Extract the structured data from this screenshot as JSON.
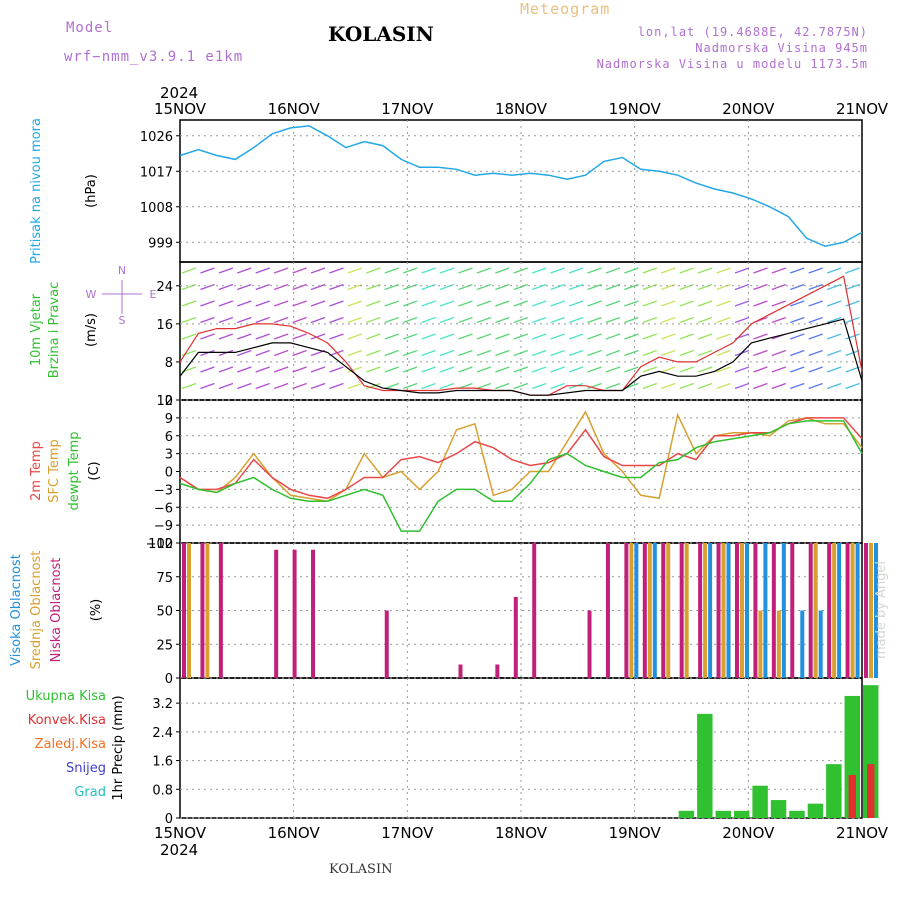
{
  "header": {
    "model_label": "Model",
    "model_name": "wrf−nmm_v3.9.1  e1km",
    "station": "KOLASIN",
    "meteogram_label": "Meteogram",
    "lonlat": "lon,lat (19.4688E, 42.7875N)",
    "elevation": "Nadmorska Visina 945m",
    "model_elevation": "Nadmorska Visina u modelu 1173.5m",
    "credit": "made by Angel",
    "footer_station": "KOLASIN"
  },
  "colors": {
    "pressure": "#22a8e6",
    "wind_speed": "#000000",
    "wind_gust": "#e03030",
    "temp2m": "#e84848",
    "sfc_temp": "#d8a030",
    "dewpoint": "#30c030",
    "high_cloud": "#2090e0",
    "mid_cloud": "#d8a030",
    "low_cloud": "#c0207a",
    "total_precip": "#30c030",
    "conv_precip": "#e03030",
    "frozen_precip": "#f07020",
    "snow": "#4040d0",
    "hail": "#20c0c0",
    "model_label": "#b070d0",
    "meteogram_label": "#e8c080",
    "credit": "#d0d8d0"
  },
  "chart_data": [
    {
      "type": "line",
      "name": "pressure",
      "title": "",
      "ylabel": "Pritisak na nivou mora",
      "yunit": "(hPa)",
      "x_start": "2024-11-15T00",
      "x_step_hours": 6,
      "x_ticks": [
        "15NOV",
        "16NOV",
        "17NOV",
        "18NOV",
        "19NOV",
        "20NOV",
        "21NOV"
      ],
      "year_label": "2024",
      "ylim": [
        994,
        1030
      ],
      "yticks": [
        999,
        1008,
        1017,
        1026
      ],
      "series": [
        {
          "values": [
            1021,
            1022.5,
            1021,
            1020,
            1023,
            1026.5,
            1028,
            1028.5,
            1026,
            1023,
            1024.5,
            1023.5,
            1020,
            1018,
            1018,
            1017.5,
            1016,
            1016.5,
            1016,
            1016.5,
            1016,
            1015,
            1016,
            1019.5,
            1020.5,
            1017.5,
            1017,
            1016,
            1014,
            1012.5,
            1011.5,
            1010,
            1008,
            1005.5,
            1000,
            998,
            999,
            1001.5
          ]
        }
      ]
    },
    {
      "type": "line",
      "name": "wind",
      "ylabel": "10m Vjetar Brzina i Pravac",
      "yunit": "(m/s)",
      "compass": [
        "N",
        "E",
        "S",
        "W"
      ],
      "ylim": [
        0,
        29
      ],
      "yticks": [
        0,
        8,
        16,
        24
      ],
      "series": [
        {
          "name": "speed",
          "values": [
            5,
            10,
            10,
            10,
            11,
            12,
            12,
            11,
            10,
            7,
            4,
            2.5,
            2,
            1.5,
            1.5,
            2,
            2,
            2,
            2,
            1,
            1,
            1.5,
            2,
            2,
            2,
            5,
            6,
            5,
            5,
            6,
            8,
            12,
            13,
            14,
            15,
            16,
            17,
            4
          ]
        },
        {
          "name": "gust",
          "values": [
            8,
            14,
            15,
            15,
            16,
            16,
            15.5,
            14,
            12,
            8,
            3,
            2,
            2,
            2,
            2,
            2.5,
            2.5,
            2,
            2,
            1,
            1,
            3,
            3,
            2,
            2,
            7,
            9,
            8,
            8,
            10,
            12,
            16,
            18,
            20,
            22,
            24,
            26,
            6
          ]
        }
      ]
    },
    {
      "type": "line",
      "name": "temperature",
      "ylabel": "2m Temp / SFC Temp / dewpt Temp",
      "yunit": "(C)",
      "ylim": [
        -12,
        12
      ],
      "yticks": [
        -12,
        -9,
        -6,
        -3,
        0,
        3,
        6,
        9,
        12
      ],
      "series": [
        {
          "name": "2m Temp",
          "values": [
            -1,
            -3,
            -3,
            -2,
            2,
            -1,
            -3,
            -4,
            -4.5,
            -3,
            -1,
            -1,
            2,
            2.5,
            1.5,
            3,
            5,
            4,
            2,
            1,
            1.5,
            3,
            7,
            2.5,
            1,
            1,
            1,
            3,
            2,
            6,
            6,
            6.5,
            6.5,
            8,
            9,
            9,
            9,
            5.5
          ]
        },
        {
          "name": "SFC Temp",
          "values": [
            -1,
            -3,
            -3.5,
            -1,
            3,
            -1,
            -4,
            -4.5,
            -5,
            -3,
            3,
            -1,
            0,
            -3,
            0,
            7,
            8,
            -4,
            -3,
            0,
            0,
            5,
            10,
            3,
            0,
            -4,
            -4.5,
            9.5,
            3,
            6,
            6.5,
            6.5,
            6,
            8.5,
            9,
            8,
            8,
            4
          ]
        },
        {
          "name": "dewpt Temp",
          "values": [
            -2,
            -3,
            -3.5,
            -2,
            -1,
            -3,
            -4.5,
            -5,
            -5,
            -4,
            -3,
            -4,
            -10,
            -10,
            -5,
            -3,
            -3,
            -5,
            -5,
            -2,
            2,
            3,
            1,
            0,
            -1,
            -1,
            1.5,
            2,
            4,
            5,
            5.5,
            6,
            6.5,
            8,
            8.5,
            8.5,
            8.5,
            3
          ]
        }
      ]
    },
    {
      "type": "bar",
      "name": "clouds",
      "ylabel": "Visoka Oblacnost / Srednja Oblacnost / Niska Oblacnost",
      "yunit": "(%)",
      "ylim": [
        0,
        100
      ],
      "yticks": [
        0,
        25,
        50,
        75,
        100
      ],
      "series": [
        {
          "name": "Niska Oblacnost",
          "values": [
            100,
            100,
            100,
            0,
            0,
            95,
            95,
            95,
            0,
            0,
            0,
            50,
            0,
            0,
            0,
            10,
            0,
            10,
            60,
            100,
            0,
            0,
            50,
            100,
            100,
            100,
            100,
            100,
            100,
            100,
            100,
            100,
            100,
            100,
            100,
            100,
            100,
            100
          ]
        },
        {
          "name": "Srednja Oblacnost",
          "values": [
            100,
            100,
            0,
            0,
            0,
            0,
            0,
            0,
            0,
            0,
            0,
            0,
            0,
            0,
            0,
            0,
            0,
            0,
            0,
            0,
            0,
            0,
            0,
            0,
            100,
            100,
            100,
            100,
            100,
            100,
            100,
            50,
            50,
            0,
            100,
            100,
            100,
            100
          ]
        },
        {
          "name": "Visoka Oblacnost",
          "values": [
            0,
            0,
            0,
            0,
            0,
            0,
            0,
            0,
            0,
            0,
            0,
            0,
            0,
            0,
            0,
            0,
            0,
            0,
            0,
            0,
            0,
            0,
            0,
            0,
            100,
            100,
            0,
            0,
            100,
            100,
            100,
            100,
            100,
            50,
            50,
            100,
            100,
            100
          ]
        }
      ]
    },
    {
      "type": "bar",
      "name": "precipitation",
      "ylabel": "1hr Precip (mm)",
      "legend": [
        "Ukupna Kisa",
        "Konvek.Kisa",
        "Zaledj.Kisa",
        "Snijeg",
        "Grad"
      ],
      "ylim": [
        0,
        3.9
      ],
      "yticks": [
        0,
        0.8,
        1.6,
        2.4,
        3.2
      ],
      "series": [
        {
          "name": "Ukupna Kisa",
          "values": [
            0,
            0,
            0,
            0,
            0,
            0,
            0,
            0,
            0,
            0,
            0,
            0,
            0,
            0,
            0,
            0,
            0,
            0,
            0,
            0,
            0,
            0,
            0,
            0,
            0,
            0,
            0,
            0.2,
            2.9,
            0.2,
            0.2,
            0.9,
            0.5,
            0.2,
            0.4,
            1.5,
            3.4,
            3.7
          ]
        },
        {
          "name": "Konvek.Kisa",
          "values": [
            0,
            0,
            0,
            0,
            0,
            0,
            0,
            0,
            0,
            0,
            0,
            0,
            0,
            0,
            0,
            0,
            0,
            0,
            0,
            0,
            0,
            0,
            0,
            0,
            0,
            0,
            0,
            0,
            0,
            0,
            0,
            0,
            0,
            0,
            0,
            0,
            1.2,
            1.5
          ]
        }
      ]
    }
  ]
}
